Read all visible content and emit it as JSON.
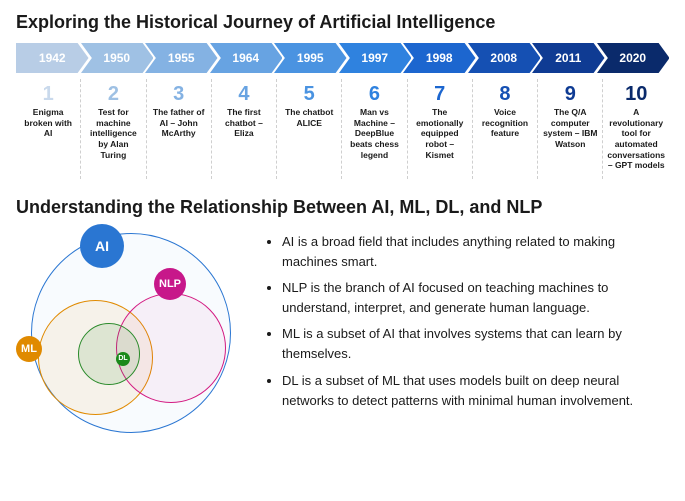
{
  "section1": {
    "title": "Exploring the Historical Journey of Artificial Intelligence",
    "timeline": [
      {
        "year": "1942",
        "num": "1",
        "desc": "Enigma broken with AI",
        "color": "#b8cde6",
        "numColor": "#c9d9ec"
      },
      {
        "year": "1950",
        "num": "2",
        "desc": "Test for machine intelligence by Alan Turing",
        "color": "#9fc1e4",
        "numColor": "#9fc1e4"
      },
      {
        "year": "1955",
        "num": "3",
        "desc": "The father of AI – John McArthy",
        "color": "#84b2e3",
        "numColor": "#84b2e3"
      },
      {
        "year": "1964",
        "num": "4",
        "desc": "The first chatbot – Eliza",
        "color": "#67a3e2",
        "numColor": "#67a3e2"
      },
      {
        "year": "1995",
        "num": "5",
        "desc": "The chatbot ALICE",
        "color": "#4a93e1",
        "numColor": "#4a93e1"
      },
      {
        "year": "1997",
        "num": "6",
        "desc": "Man vs Machine – DeepBlue beats chess legend",
        "color": "#2f82df",
        "numColor": "#2f82df"
      },
      {
        "year": "1998",
        "num": "7",
        "desc": "The emotionally equipped robot – Kismet",
        "color": "#1c66cf",
        "numColor": "#1c66cf"
      },
      {
        "year": "2008",
        "num": "8",
        "desc": "Voice recognition feature",
        "color": "#1550b3",
        "numColor": "#1550b3"
      },
      {
        "year": "2011",
        "num": "9",
        "desc": "The Q/A computer system – IBM Watson",
        "color": "#0f3b93",
        "numColor": "#0f3b93"
      },
      {
        "year": "2020",
        "num": "10",
        "desc": "A revolutionary tool for automated conversations – GPT models",
        "color": "#0a2a6b",
        "numColor": "#0a2a6b"
      }
    ]
  },
  "section2": {
    "title": "Understanding the Relationship Between AI, ML, DL, and NLP",
    "venn": {
      "ai": {
        "label": "AI",
        "badgeColor": "#2a76d2",
        "strokeColor": "#2a76d2"
      },
      "nlp": {
        "label": "NLP",
        "badgeColor": "#c7178a",
        "strokeColor": "#d31a82"
      },
      "ml": {
        "label": "ML",
        "badgeColor": "#e08a00",
        "strokeColor": "#e08a00"
      },
      "dl": {
        "label": "DL",
        "badgeColor": "#1a8a1a",
        "strokeColor": "#2a8a2a"
      }
    },
    "bullets": [
      "AI is a broad field that includes anything related to making machines smart.",
      "NLP is the branch of AI focused on teaching machines to understand, interpret, and generate human language.",
      "ML is a subset of AI that involves systems that can learn by themselves.",
      "DL is a subset of ML that uses models built on deep neural networks to detect patterns with minimal human involvement."
    ]
  },
  "style": {
    "background": "#ffffff",
    "titleFontSize": 18,
    "yearFontSize": 12,
    "descFontSize": 8.5,
    "bulletFontSize": 13
  }
}
